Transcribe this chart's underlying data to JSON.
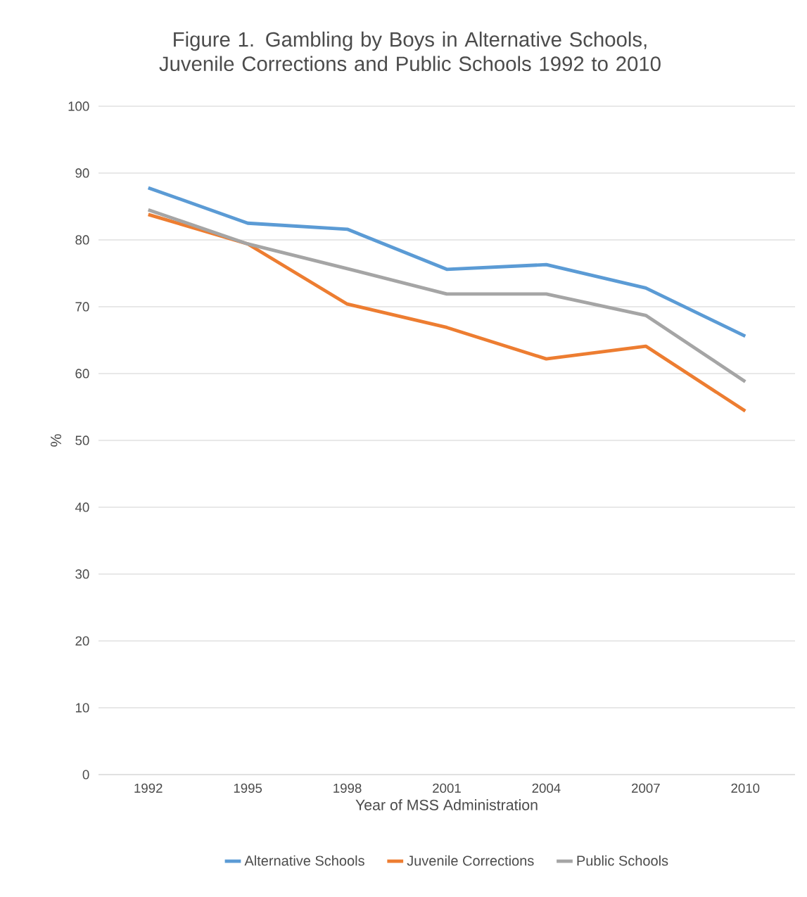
{
  "chart_data": {
    "type": "line",
    "title": "Figure 1. Gambling by Boys in Alternative Schools, Juvenile Corrections and Public Schools 1992 to 2010",
    "xlabel": "Year of MSS Administration",
    "ylabel": "%",
    "categories": [
      "1992",
      "1995",
      "1998",
      "2001",
      "2004",
      "2007",
      "2010"
    ],
    "series": [
      {
        "name": "Alternative Schools",
        "color": "#5b9bd5",
        "values": [
          87.8,
          82.5,
          81.6,
          75.6,
          76.3,
          72.8,
          65.6
        ]
      },
      {
        "name": "Juvenile Corrections",
        "color": "#ed7d31",
        "values": [
          83.8,
          79.4,
          70.4,
          66.9,
          62.2,
          64.1,
          54.4
        ]
      },
      {
        "name": "Public Schools",
        "color": "#a5a5a5",
        "values": [
          84.5,
          79.4,
          75.7,
          71.9,
          71.9,
          68.7,
          58.8
        ]
      }
    ],
    "ylim": [
      0,
      100
    ],
    "yticks": [
      0,
      10,
      20,
      30,
      40,
      50,
      60,
      70,
      80,
      90,
      100
    ],
    "grid": "y",
    "legend": "bottom"
  }
}
